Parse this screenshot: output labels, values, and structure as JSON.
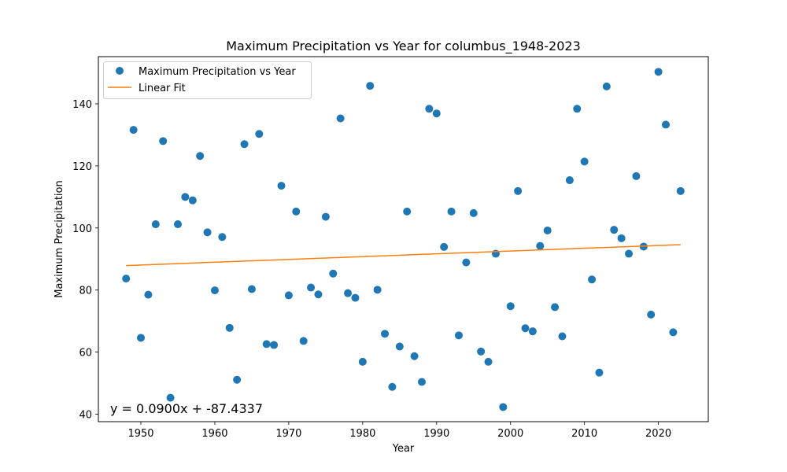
{
  "chart_data": {
    "type": "scatter",
    "title": "Maximum Precipitation vs Year for columbus_1948-2023",
    "xlabel": "Year",
    "ylabel": "Maximum Precipitation",
    "xlim": [
      1944.25,
      2026.75
    ],
    "ylim": [
      37.6,
      155.2
    ],
    "xticks": [
      1950,
      1960,
      1970,
      1980,
      1990,
      2000,
      2010,
      2020
    ],
    "yticks": [
      40,
      60,
      80,
      100,
      120,
      140
    ],
    "grid": false,
    "legend_position": "top-left",
    "colors": {
      "points": "#1f77b4",
      "fit": "#ff7f0e"
    },
    "series": [
      {
        "name": "Maximum Precipitation vs Year",
        "kind": "scatter",
        "x": [
          1948,
          1949,
          1950,
          1951,
          1952,
          1953,
          1954,
          1955,
          1956,
          1957,
          1958,
          1959,
          1960,
          1961,
          1962,
          1963,
          1964,
          1965,
          1966,
          1967,
          1968,
          1969,
          1970,
          1971,
          1972,
          1973,
          1974,
          1975,
          1976,
          1977,
          1978,
          1979,
          1980,
          1981,
          1982,
          1983,
          1984,
          1985,
          1986,
          1987,
          1988,
          1989,
          1990,
          1991,
          1992,
          1993,
          1994,
          1995,
          1996,
          1997,
          1998,
          1999,
          2000,
          2001,
          2002,
          2003,
          2004,
          2005,
          2006,
          2007,
          2008,
          2009,
          2010,
          2011,
          2012,
          2013,
          2014,
          2015,
          2016,
          2017,
          2018,
          2019,
          2020,
          2021,
          2022,
          2023
        ],
        "y": [
          83.7,
          131.6,
          64.6,
          78.5,
          101.2,
          128.0,
          45.3,
          101.2,
          110.0,
          108.9,
          123.2,
          98.6,
          79.9,
          97.1,
          67.8,
          51.1,
          127.0,
          80.3,
          130.3,
          62.6,
          62.3,
          113.6,
          78.3,
          105.3,
          63.6,
          80.8,
          78.6,
          103.6,
          85.3,
          135.3,
          79.0,
          77.5,
          56.9,
          145.8,
          80.1,
          65.9,
          48.8,
          61.8,
          105.3,
          58.7,
          50.4,
          138.4,
          136.9,
          93.9,
          105.3,
          65.4,
          88.9,
          104.8,
          60.2,
          56.9,
          91.7,
          42.3,
          74.8,
          111.9,
          67.7,
          66.7,
          94.2,
          99.2,
          74.5,
          65.1,
          115.4,
          138.4,
          121.4,
          83.4,
          53.4,
          145.6,
          99.4,
          96.7,
          91.7,
          116.7,
          94.0,
          72.1,
          150.3,
          133.3,
          66.4,
          111.9
        ]
      },
      {
        "name": "Linear Fit",
        "kind": "line",
        "x": [
          1948,
          2023
        ],
        "y": [
          87.89,
          94.64
        ]
      }
    ],
    "annotations": [
      {
        "text": "y = 0.0900x + -87.4337",
        "position": "bottom-left"
      }
    ]
  }
}
